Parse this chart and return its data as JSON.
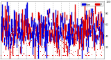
{
  "bg_color": "#ffffff",
  "grid_color": "#aaaaaa",
  "bar_color_blue": "#0000dd",
  "bar_color_red": "#dd0000",
  "dot_color": "#dd0000",
  "ylim": [
    0,
    100
  ],
  "num_days": 365,
  "seed": 12345,
  "legend_label_blue": "Hum",
  "legend_label_red": "DP",
  "yticks": [
    20,
    40,
    60,
    80,
    100
  ],
  "num_grid_lines": 13
}
